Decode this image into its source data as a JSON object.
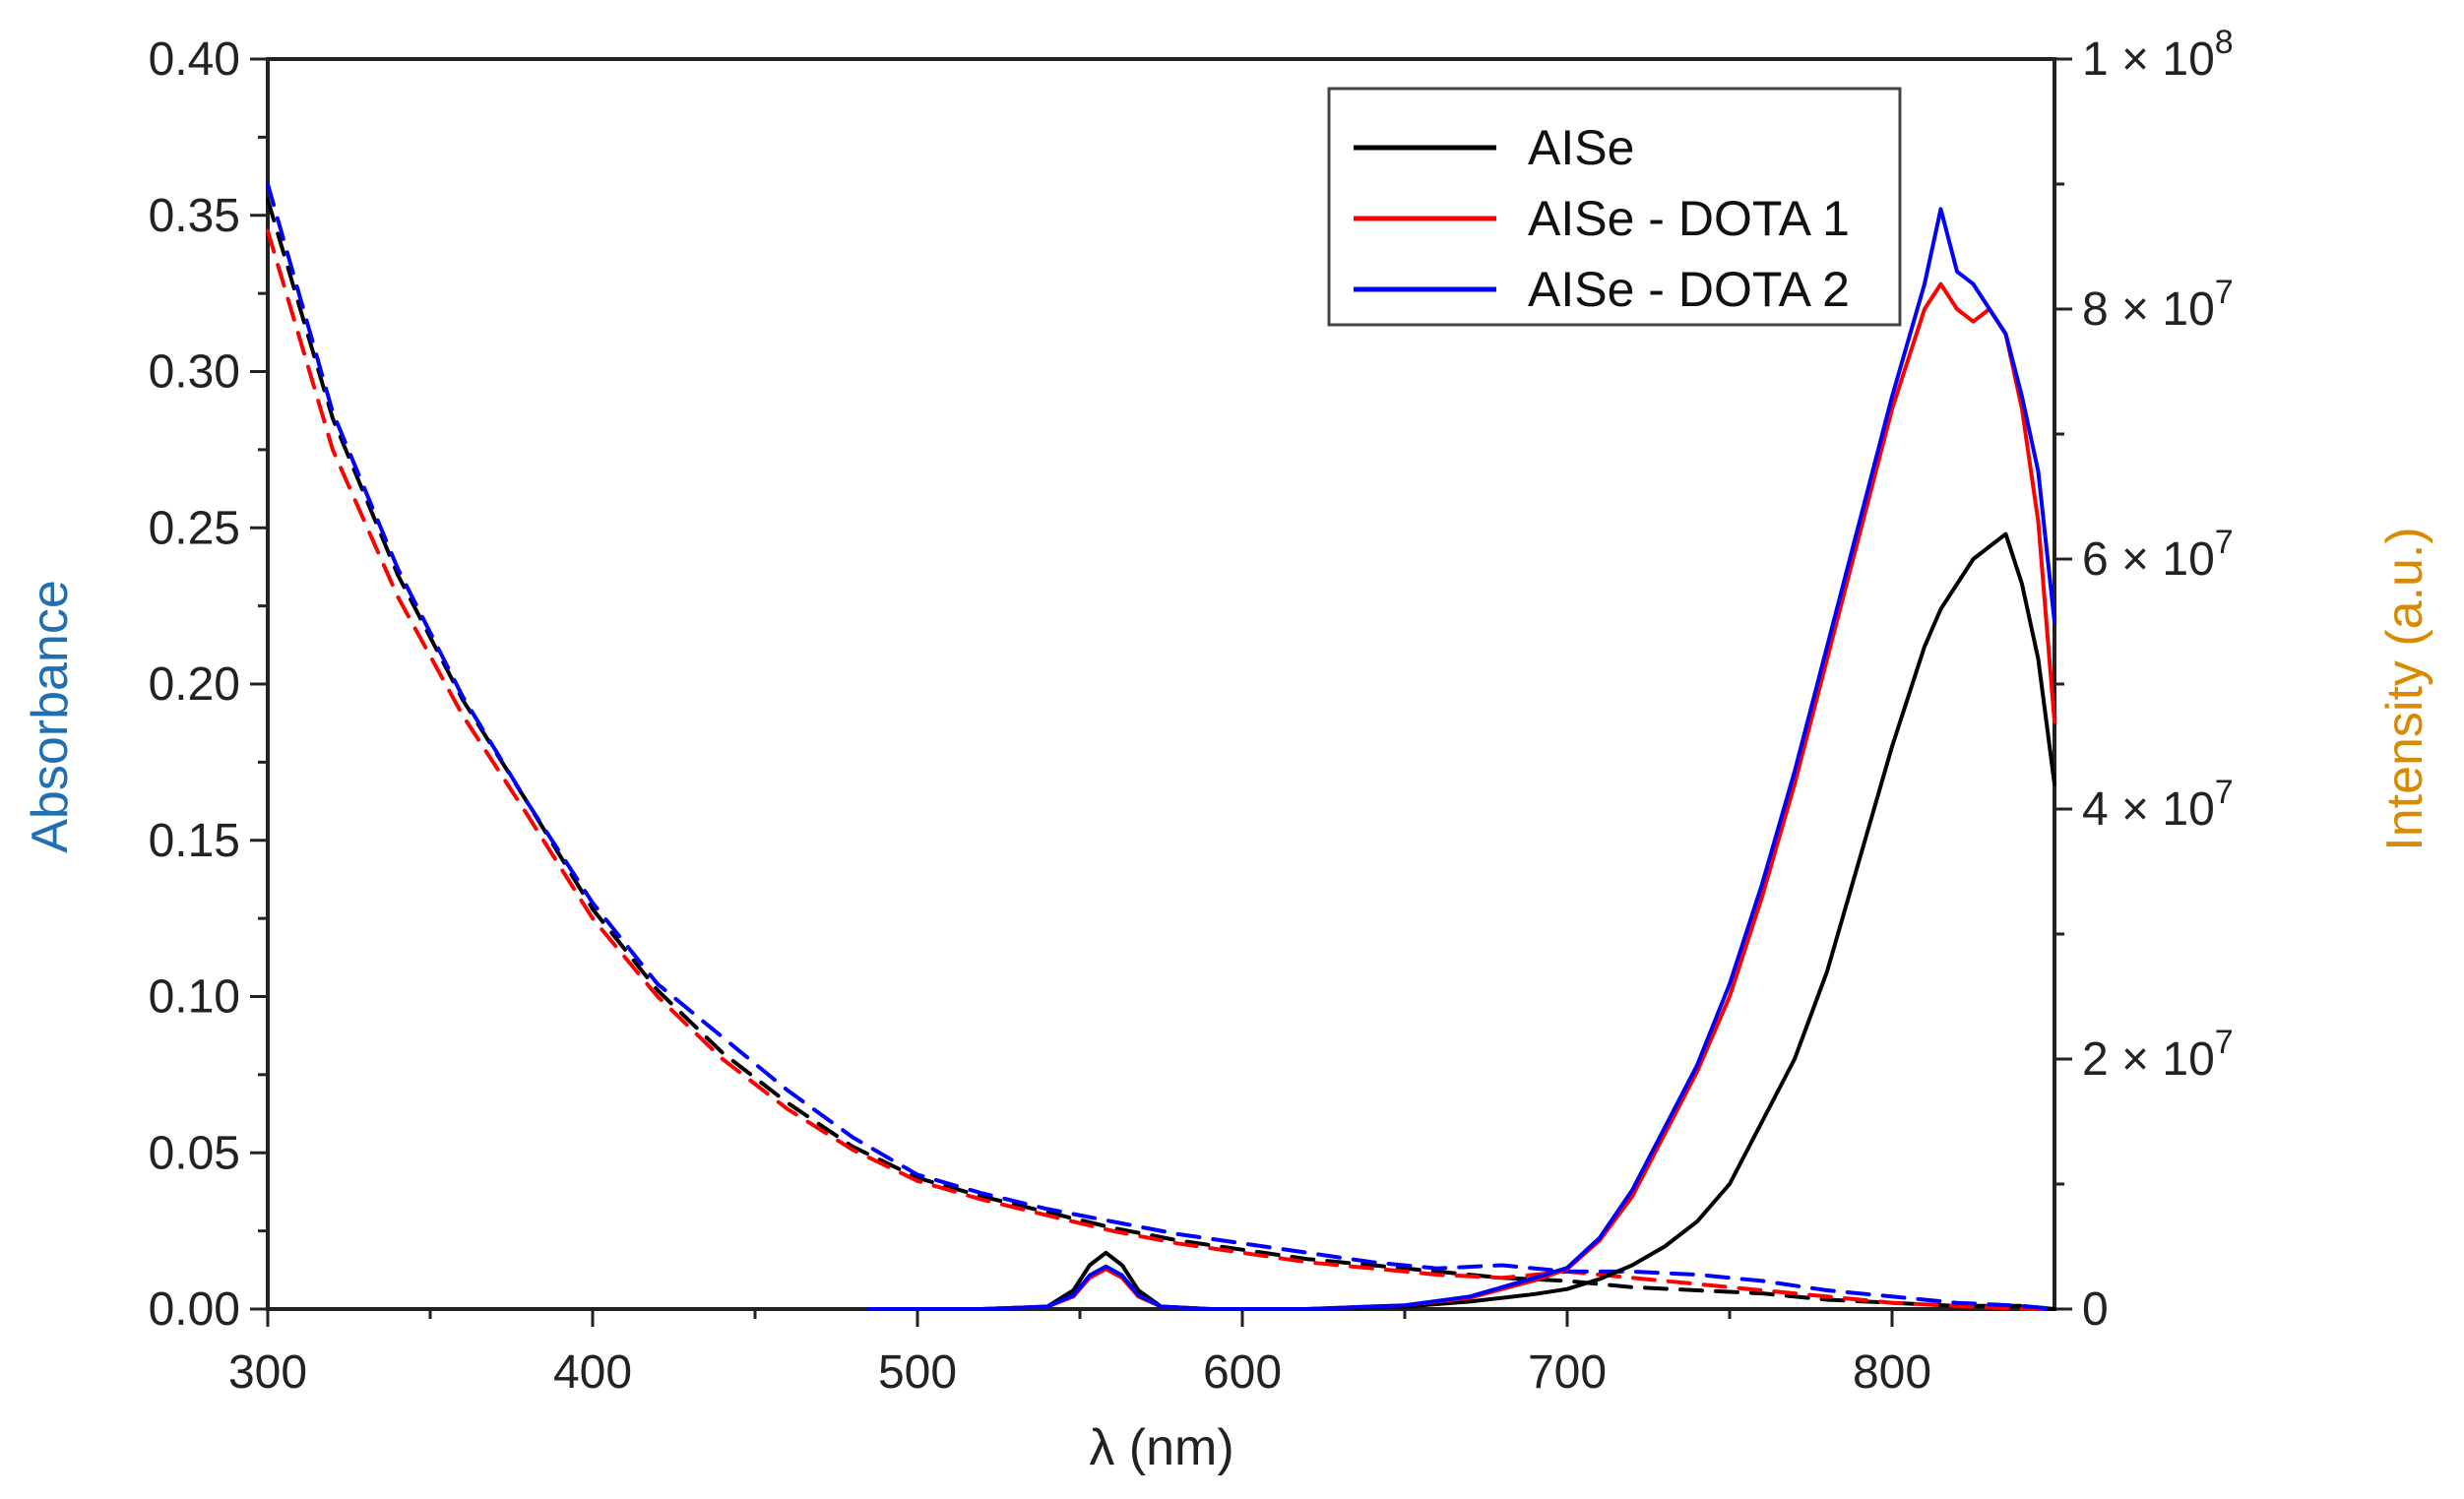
{
  "chart_data": {
    "type": "line",
    "title": "",
    "xlabel": "λ (nm)",
    "ylabel_left": "Absorbance",
    "ylabel_right": "Intensity (a.u.)",
    "xlim": [
      300,
      850
    ],
    "ylim_left": [
      0,
      0.4
    ],
    "ylim_right": [
      0,
      100000000
    ],
    "x_ticks": [
      "300",
      "400",
      "500",
      "600",
      "700",
      "800"
    ],
    "y_left_ticks": [
      "0.00",
      "0.05",
      "0.10",
      "0.15",
      "0.20",
      "0.25",
      "0.30",
      "0.35",
      "0.40"
    ],
    "y_right_ticks": [
      {
        "mant": "0",
        "exp": ""
      },
      {
        "mant": "2 × 10",
        "exp": "7"
      },
      {
        "mant": "4 × 10",
        "exp": "7"
      },
      {
        "mant": "6 × 10",
        "exp": "7"
      },
      {
        "mant": "8 × 10",
        "exp": "7"
      },
      {
        "mant": "1 × 10",
        "exp": "8"
      }
    ],
    "legend": {
      "position": "top-right",
      "entries": [
        {
          "name": "AISe",
          "color": "#000000"
        },
        {
          "name": "AISe - DOTA 1",
          "color": "#ff0000"
        },
        {
          "name": "AISe - DOTA 2",
          "color": "#0000ff"
        }
      ]
    },
    "colors": {
      "left_axis_title": "#1f6fb2",
      "right_axis_title": "#d98a00"
    },
    "absorbance_series": {
      "axis": "left",
      "style": "dashed",
      "x": [
        300,
        320,
        340,
        360,
        380,
        400,
        420,
        440,
        460,
        480,
        500,
        520,
        540,
        560,
        580,
        600,
        620,
        640,
        660,
        680,
        700,
        720,
        740,
        760,
        780,
        800,
        820,
        840,
        850
      ],
      "series": [
        {
          "name": "AISe",
          "color": "#000000",
          "values": [
            0.355,
            0.285,
            0.235,
            0.195,
            0.162,
            0.128,
            0.102,
            0.082,
            0.066,
            0.052,
            0.042,
            0.036,
            0.031,
            0.026,
            0.022,
            0.019,
            0.016,
            0.014,
            0.012,
            0.01,
            0.009,
            0.007,
            0.006,
            0.005,
            0.003,
            0.002,
            0.001,
            0.001,
            0.0
          ]
        },
        {
          "name": "AISe - DOTA 1",
          "color": "#ff0000",
          "values": [
            0.345,
            0.275,
            0.228,
            0.19,
            0.158,
            0.125,
            0.1,
            0.08,
            0.064,
            0.051,
            0.041,
            0.035,
            0.03,
            0.025,
            0.021,
            0.018,
            0.015,
            0.013,
            0.011,
            0.01,
            0.012,
            0.01,
            0.008,
            0.006,
            0.004,
            0.002,
            0.001,
            0.0,
            0.0
          ]
        },
        {
          "name": "AISe - DOTA 2",
          "color": "#0000ff",
          "values": [
            0.36,
            0.287,
            0.237,
            0.196,
            0.162,
            0.13,
            0.104,
            0.087,
            0.07,
            0.055,
            0.043,
            0.037,
            0.032,
            0.028,
            0.024,
            0.021,
            0.018,
            0.015,
            0.013,
            0.014,
            0.012,
            0.012,
            0.011,
            0.009,
            0.006,
            0.004,
            0.002,
            0.001,
            0.0
          ]
        }
      ]
    },
    "emission_series": {
      "axis": "right",
      "style": "solid",
      "x": [
        485,
        500,
        520,
        540,
        548,
        553,
        558,
        563,
        568,
        575,
        590,
        620,
        650,
        670,
        690,
        700,
        710,
        720,
        730,
        740,
        750,
        760,
        770,
        780,
        790,
        800,
        810,
        815,
        820,
        825,
        830,
        835,
        840,
        845,
        850
      ],
      "series": [
        {
          "name": "AISe",
          "color": "#000000",
          "values": [
            0,
            0,
            0,
            200000,
            1500000,
            3500000,
            4500000,
            3500000,
            1500000,
            200000,
            0,
            0,
            200000,
            600000,
            1200000,
            1600000,
            2400000,
            3500000,
            5000000,
            7000000,
            10000000,
            15000000,
            20000000,
            27000000,
            36000000,
            45000000,
            53000000,
            56000000,
            58000000,
            60000000,
            61000000,
            62000000,
            58000000,
            52000000,
            42000000
          ]
        },
        {
          "name": "AISe - DOTA 1",
          "color": "#ff0000",
          "values": [
            0,
            0,
            0,
            200000,
            1000000,
            2500000,
            3200000,
            2500000,
            1000000,
            200000,
            0,
            0,
            300000,
            900000,
            2300000,
            3200000,
            5500000,
            9000000,
            14000000,
            19000000,
            25000000,
            33000000,
            42000000,
            52000000,
            62000000,
            72000000,
            80000000,
            82000000,
            80000000,
            79000000,
            80000000,
            78000000,
            72000000,
            63000000,
            47000000
          ]
        },
        {
          "name": "AISe - DOTA 2",
          "color": "#0000ff",
          "values": [
            0,
            0,
            0,
            200000,
            1100000,
            2700000,
            3400000,
            2700000,
            1100000,
            200000,
            0,
            0,
            300000,
            1000000,
            2500000,
            3300000,
            5700000,
            9500000,
            14500000,
            19500000,
            26000000,
            34000000,
            43000000,
            53000000,
            63000000,
            73000000,
            82000000,
            88000000,
            83000000,
            82000000,
            80000000,
            78000000,
            73000000,
            67000000,
            55000000
          ]
        }
      ]
    }
  }
}
